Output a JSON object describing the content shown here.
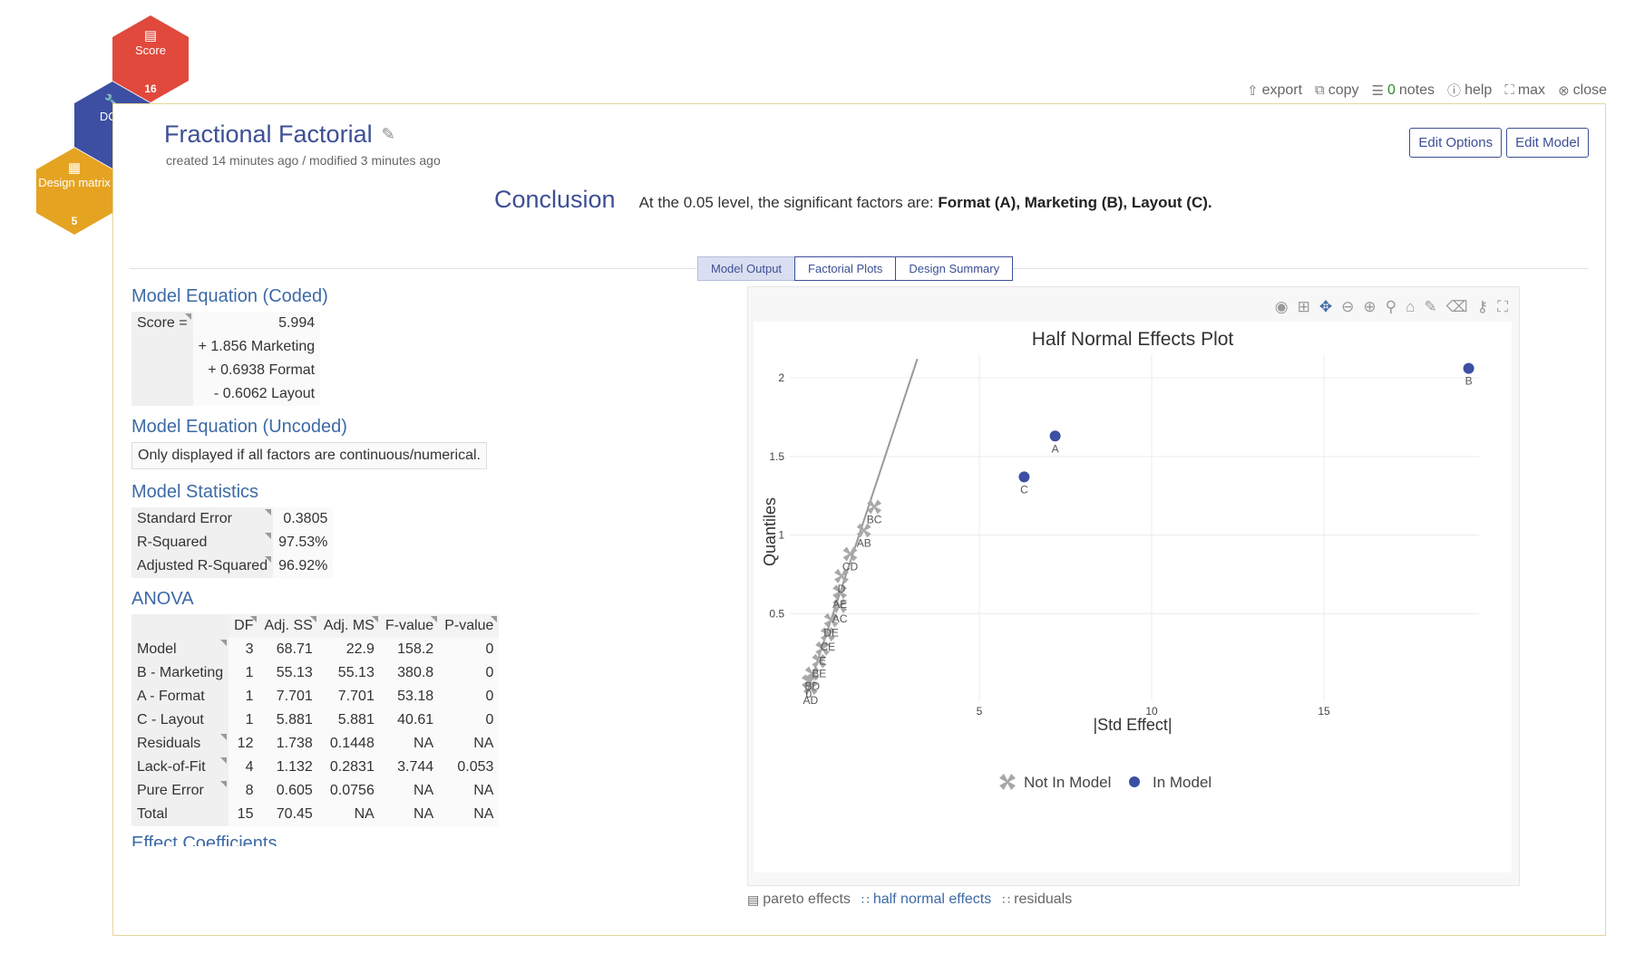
{
  "hex_nav": {
    "score": {
      "label": "Score",
      "count": "16",
      "icon": "bar-chart-icon",
      "color": "#e0493c"
    },
    "doe": {
      "label": "DOE",
      "icon": "wrench-icon",
      "color": "#3c4fa3"
    },
    "design": {
      "label": "Design matrix",
      "count": "5",
      "icon": "table-icon",
      "color": "#e5a322"
    }
  },
  "toolbar": {
    "export": "export",
    "copy": "copy",
    "notes_count": "0",
    "notes": "notes",
    "help": "help",
    "max": "max",
    "close": "close"
  },
  "header": {
    "title": "Fractional Factorial",
    "meta": "created 14 minutes ago / modified 3 minutes ago",
    "edit_options": "Edit Options",
    "edit_model": "Edit Model"
  },
  "conclusion": {
    "label": "Conclusion",
    "text": "At the 0.05 level, the significant factors are:",
    "factors": "Format (A), Marketing (B), Layout (C)."
  },
  "tabs": [
    {
      "label": "Model Output",
      "active": true
    },
    {
      "label": "Factorial Plots",
      "active": false
    },
    {
      "label": "Design Summary",
      "active": false
    }
  ],
  "model_equation_coded": {
    "title": "Model Equation (Coded)",
    "response": "Score =",
    "terms": [
      "5.994",
      "+ 1.856 Marketing",
      "+ 0.6938 Format",
      "- 0.6062 Layout"
    ]
  },
  "model_equation_uncoded": {
    "title": "Model Equation (Uncoded)",
    "note": "Only displayed if all factors are continuous/numerical."
  },
  "model_statistics": {
    "title": "Model Statistics",
    "rows": [
      {
        "label": "Standard Error",
        "value": "0.3805"
      },
      {
        "label": "R-Squared",
        "value": "97.53%"
      },
      {
        "label": "Adjusted R-Squared",
        "value": "96.92%"
      }
    ]
  },
  "anova": {
    "title": "ANOVA",
    "columns": [
      "DF",
      "Adj. SS",
      "Adj. MS",
      "F-value",
      "P-value"
    ],
    "rows": [
      {
        "label": "Model",
        "cells": [
          "3",
          "68.71",
          "22.9",
          "158.2",
          "0"
        ]
      },
      {
        "label": "B - Marketing",
        "cells": [
          "1",
          "55.13",
          "55.13",
          "380.8",
          "0"
        ]
      },
      {
        "label": "A - Format",
        "cells": [
          "1",
          "7.701",
          "7.701",
          "53.18",
          "0"
        ]
      },
      {
        "label": "C - Layout",
        "cells": [
          "1",
          "5.881",
          "5.881",
          "40.61",
          "0"
        ]
      },
      {
        "label": "Residuals",
        "cells": [
          "12",
          "1.738",
          "0.1448",
          "NA",
          "NA"
        ]
      },
      {
        "label": "Lack-of-Fit",
        "cells": [
          "4",
          "1.132",
          "0.2831",
          "3.744",
          "0.053"
        ]
      },
      {
        "label": "Pure Error",
        "cells": [
          "8",
          "0.605",
          "0.0756",
          "NA",
          "NA"
        ]
      },
      {
        "label": "Total",
        "cells": [
          "15",
          "70.45",
          "NA",
          "NA",
          "NA"
        ]
      }
    ]
  },
  "effect_coefficients": {
    "title": "Effect Coefficients"
  },
  "chart_links": [
    {
      "label": "pareto effects",
      "icon": "bar-chart-icon",
      "active": false
    },
    {
      "label": "half normal effects",
      "icon": "scatter-icon",
      "active": true
    },
    {
      "label": "residuals",
      "icon": "scatter-icon",
      "active": false
    }
  ],
  "chart_data": {
    "type": "scatter",
    "title": "Half Normal Effects Plot",
    "xlabel": "|Std Effect|",
    "ylabel": "Quantiles",
    "xlim": [
      -0.5,
      19.5
    ],
    "ylim": [
      -0.05,
      2.15
    ],
    "xticks": [
      5,
      10,
      15
    ],
    "yticks": [
      0.5,
      1,
      1.5,
      2
    ],
    "grid": true,
    "legend_position": "bottom",
    "reference_line": {
      "x": [
        0,
        3.2
      ],
      "y": [
        0,
        2.12
      ],
      "color": "#999999"
    },
    "series": [
      {
        "name": "Not In Model",
        "marker": "cross",
        "color": "#a8a8a8",
        "points": [
          {
            "label": "AD",
            "x": 0.1,
            "y": 0.03
          },
          {
            "label": "0",
            "x": 0.05,
            "y": 0.07
          },
          {
            "label": "BD",
            "x": 0.15,
            "y": 0.12
          },
          {
            "label": "BE",
            "x": 0.35,
            "y": 0.2
          },
          {
            "label": "E",
            "x": 0.45,
            "y": 0.28
          },
          {
            "label": "CE",
            "x": 0.6,
            "y": 0.37
          },
          {
            "label": "DE",
            "x": 0.7,
            "y": 0.46
          },
          {
            "label": "AC",
            "x": 0.95,
            "y": 0.55
          },
          {
            "label": "AE",
            "x": 0.95,
            "y": 0.64
          },
          {
            "label": "D",
            "x": 1.0,
            "y": 0.74
          },
          {
            "label": "CD",
            "x": 1.25,
            "y": 0.88
          },
          {
            "label": "AB",
            "x": 1.65,
            "y": 1.03
          },
          {
            "label": "BC",
            "x": 1.95,
            "y": 1.18
          }
        ]
      },
      {
        "name": "In Model",
        "marker": "circle",
        "color": "#3c4fa3",
        "points": [
          {
            "label": "C",
            "x": 6.3,
            "y": 1.37
          },
          {
            "label": "A",
            "x": 7.2,
            "y": 1.63
          },
          {
            "label": "B",
            "x": 19.2,
            "y": 2.06
          }
        ]
      }
    ]
  },
  "colors": {
    "accent": "#3d4f95",
    "link": "#3d6aa5",
    "panel_border": "#e6d59a"
  }
}
